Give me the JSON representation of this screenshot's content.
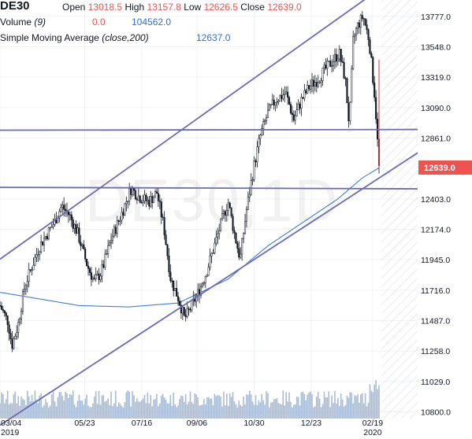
{
  "legend": {
    "symbol": "DE30",
    "open_label": "Open",
    "open_value": "13018.5",
    "high_label": "High",
    "high_value": "13157.8",
    "low_label": "Low",
    "low_value": "12626.5",
    "close_label": "Close",
    "close_value": "12639.0",
    "volume_label": "Volume",
    "volume_param": "(9)",
    "volume_value1": "0.0",
    "volume_value2": "104562.0",
    "sma_label": "Simple Moving Average",
    "sma_param": "(close,200)",
    "sma_value": "12637.0"
  },
  "watermark": "DE30,1D",
  "chart_data": {
    "type": "candlestick",
    "ylim": [
      10750,
      13900
    ],
    "y_ticks": [
      13777.0,
      13548.0,
      13319.0,
      13090.0,
      12861.0,
      12403.0,
      12174.0,
      11945.0,
      11716.0,
      11487.0,
      11258.0,
      11029.0,
      10800.0
    ],
    "y_tick_labels": [
      "13777.0",
      "13548.0",
      "13319.0",
      "13090.0",
      "12861.0",
      "12403.0",
      "12174.0",
      "11945.0",
      "11716.0",
      "11487.0",
      "11258.0",
      "11029.0",
      "10800.0"
    ],
    "x_ticks": [
      {
        "label": "03/04",
        "sub": "2019",
        "day": 0
      },
      {
        "label": "05/23",
        "sub": "",
        "day": 80
      },
      {
        "label": "07/16",
        "sub": "",
        "day": 134
      },
      {
        "label": "09/06",
        "sub": "",
        "day": 186
      },
      {
        "label": "10/30",
        "sub": "",
        "day": 240
      },
      {
        "label": "12/23",
        "sub": "",
        "day": 294
      },
      {
        "label": "02/19",
        "sub": "2020",
        "day": 352
      }
    ],
    "x_range_days": [
      0,
      358
    ],
    "last_price": {
      "value": 12639.0,
      "label": "12639.0",
      "color": "#ef5350"
    },
    "price_path": [
      {
        "d": 0,
        "p": 11600
      },
      {
        "d": 8,
        "p": 11480
      },
      {
        "d": 12,
        "p": 11300
      },
      {
        "d": 18,
        "p": 11450
      },
      {
        "d": 25,
        "p": 11750
      },
      {
        "d": 40,
        "p": 12050
      },
      {
        "d": 55,
        "p": 12230
      },
      {
        "d": 62,
        "p": 12350
      },
      {
        "d": 70,
        "p": 12280
      },
      {
        "d": 78,
        "p": 12150
      },
      {
        "d": 88,
        "p": 11900
      },
      {
        "d": 95,
        "p": 11780
      },
      {
        "d": 102,
        "p": 11850
      },
      {
        "d": 112,
        "p": 12100
      },
      {
        "d": 122,
        "p": 12280
      },
      {
        "d": 132,
        "p": 12480
      },
      {
        "d": 140,
        "p": 12420
      },
      {
        "d": 150,
        "p": 12380
      },
      {
        "d": 158,
        "p": 12450
      },
      {
        "d": 165,
        "p": 12200
      },
      {
        "d": 172,
        "p": 11800
      },
      {
        "d": 180,
        "p": 11650
      },
      {
        "d": 186,
        "p": 11500
      },
      {
        "d": 192,
        "p": 11580
      },
      {
        "d": 200,
        "p": 11700
      },
      {
        "d": 208,
        "p": 11850
      },
      {
        "d": 216,
        "p": 12050
      },
      {
        "d": 224,
        "p": 12250
      },
      {
        "d": 230,
        "p": 12380
      },
      {
        "d": 236,
        "p": 12150
      },
      {
        "d": 242,
        "p": 11950
      },
      {
        "d": 248,
        "p": 12300
      },
      {
        "d": 256,
        "p": 12650
      },
      {
        "d": 262,
        "p": 12870
      },
      {
        "d": 270,
        "p": 13050
      },
      {
        "d": 278,
        "p": 13150
      },
      {
        "d": 288,
        "p": 13200
      },
      {
        "d": 296,
        "p": 13000
      },
      {
        "d": 304,
        "p": 13150
      },
      {
        "d": 312,
        "p": 13250
      },
      {
        "d": 320,
        "p": 13300
      },
      {
        "d": 328,
        "p": 13380
      },
      {
        "d": 336,
        "p": 13450
      },
      {
        "d": 342,
        "p": 13500
      },
      {
        "d": 348,
        "p": 13300
      },
      {
        "d": 352,
        "p": 12950
      },
      {
        "d": 356,
        "p": 13600
      },
      {
        "d": 360,
        "p": 13700
      },
      {
        "d": 366,
        "p": 13780
      },
      {
        "d": 372,
        "p": 13600
      },
      {
        "d": 378,
        "p": 13150
      },
      {
        "d": 382,
        "p": 12639
      }
    ],
    "sma_path": [
      {
        "d": 0,
        "p": 11700
      },
      {
        "d": 40,
        "p": 11650
      },
      {
        "d": 80,
        "p": 11600
      },
      {
        "d": 130,
        "p": 11590
      },
      {
        "d": 180,
        "p": 11620
      },
      {
        "d": 230,
        "p": 11800
      },
      {
        "d": 270,
        "p": 12050
      },
      {
        "d": 310,
        "p": 12250
      },
      {
        "d": 340,
        "p": 12400
      },
      {
        "d": 365,
        "p": 12560
      },
      {
        "d": 382,
        "p": 12637
      }
    ],
    "trend_lines": [
      {
        "name": "upper-channel",
        "from": {
          "d": 0,
          "p": 11950
        },
        "to": {
          "d": 382,
          "p": 13980
        }
      },
      {
        "name": "lower-channel",
        "from": {
          "d": 0,
          "p": 10700
        },
        "to": {
          "d": 382,
          "p": 12560
        }
      },
      {
        "name": "resistance-line",
        "from": {
          "d": 0,
          "p": 12920
        },
        "to": {
          "d": 382,
          "p": 12925
        }
      },
      {
        "name": "support-line",
        "from": {
          "d": 0,
          "p": 12490
        },
        "to": {
          "d": 382,
          "p": 12480
        }
      }
    ],
    "colors": {
      "up": "#26a69a",
      "down": "#ef5350",
      "candle": "#131722",
      "sma": "#2f6fd6",
      "trend": "#6a6ab5",
      "volume": "#a9bcd6",
      "grid": "#f0f3f7"
    }
  }
}
